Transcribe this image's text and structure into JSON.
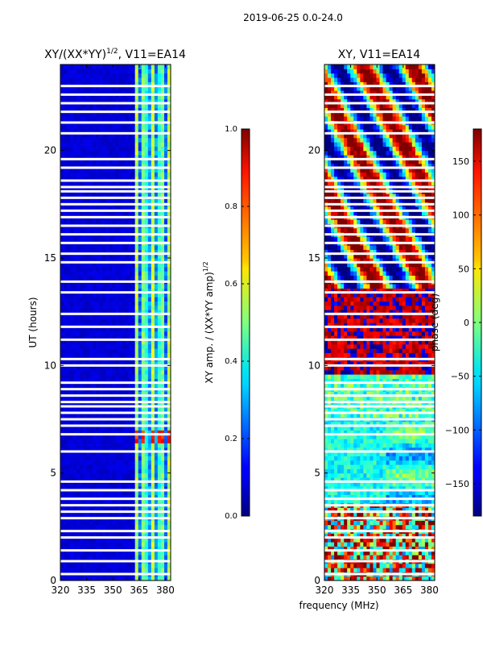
{
  "figure": {
    "suptitle": "2019-06-25 0.0-24.0",
    "xlabel": "frequency (MHz)"
  },
  "chart_data": [
    {
      "type": "heatmap",
      "title_main": "XY/(XX*YY)",
      "title_exp": "1/2",
      "title_tail": ", V11=EA14",
      "xlabel": "",
      "ylabel": "UT (hours)",
      "xlim": [
        320,
        383
      ],
      "ylim": [
        0,
        24
      ],
      "xticks": [
        320,
        335,
        350,
        365,
        380
      ],
      "yticks": [
        0,
        5,
        10,
        15,
        20
      ],
      "colorbar": {
        "label_main": "XY amp. / (XX*YY amp)",
        "label_exp": "1/2",
        "range": [
          0.0,
          1.0
        ],
        "ticks": [
          "0.0",
          "0.2",
          "0.4",
          "0.6",
          "0.8",
          "1.0"
        ],
        "colormap": "jet"
      },
      "band_features": [
        {
          "freq_start": 361,
          "freq_end": 383,
          "typical_value": 0.45,
          "note": "elevated normalized amplitude at high-frequency channels"
        },
        {
          "freq_start": 320,
          "freq_end": 361,
          "typical_value": 0.05,
          "note": "low amplitude"
        },
        {
          "ut_start": 6.3,
          "ut_end": 6.9,
          "freq_start": 361,
          "freq_end": 383,
          "typical_value": 0.8,
          "note": "bright spots"
        }
      ],
      "gaps_ut": [
        0.3,
        0.9,
        1.4,
        2.0,
        2.3,
        2.9,
        3.2,
        3.5,
        3.8,
        4.2,
        4.6,
        6.0,
        6.8,
        7.2,
        7.5,
        7.8,
        8.1,
        8.3,
        8.6,
        8.9,
        9.2,
        10.0,
        10.3,
        11.2,
        11.8,
        12.4,
        13.4,
        13.9,
        14.8,
        15.2,
        15.7,
        16.1,
        16.5,
        16.9,
        17.2,
        17.5,
        17.8,
        18.1,
        18.3,
        18.6,
        19.2,
        19.6,
        20.8,
        21.3,
        21.8,
        22.2,
        22.6,
        23.0
      ]
    },
    {
      "type": "heatmap",
      "title": "XY, V11=EA14",
      "xlabel": "",
      "ylabel": "",
      "xlim": [
        320,
        383
      ],
      "ylim": [
        0,
        24
      ],
      "xticks": [
        320,
        335,
        350,
        365,
        380
      ],
      "yticks": [
        0,
        5,
        10,
        15,
        20
      ],
      "colorbar": {
        "label": "phase (deg)",
        "range": [
          -180,
          180
        ],
        "ticks": [
          "150",
          "100",
          "50",
          "0",
          "−50",
          "−100",
          "−150"
        ],
        "colormap": "jet"
      },
      "phase_features": [
        {
          "ut_start": 3.5,
          "ut_end": 7.5,
          "typical_value": -40,
          "note": "mostly green, near-zero phase"
        },
        {
          "ut_start": 9.5,
          "ut_end": 13.5,
          "typical_value": 140,
          "note": "red dominated with blue patches"
        },
        {
          "ut_start": 13.5,
          "ut_end": 24.0,
          "typical_value": 0,
          "note": "mixed phase, wide variation"
        }
      ],
      "gaps_ut": [
        0.3,
        0.9,
        1.4,
        2.0,
        2.3,
        2.9,
        3.2,
        3.5,
        3.8,
        4.2,
        4.6,
        6.0,
        6.8,
        7.2,
        7.5,
        7.8,
        8.1,
        8.3,
        8.6,
        8.9,
        9.2,
        10.0,
        10.3,
        11.2,
        11.8,
        12.4,
        13.4,
        13.9,
        14.8,
        15.2,
        15.7,
        16.1,
        16.5,
        16.9,
        17.2,
        17.5,
        17.8,
        18.1,
        18.3,
        18.6,
        19.2,
        19.6,
        20.8,
        21.3,
        21.8,
        22.2,
        22.6,
        23.0
      ]
    }
  ]
}
